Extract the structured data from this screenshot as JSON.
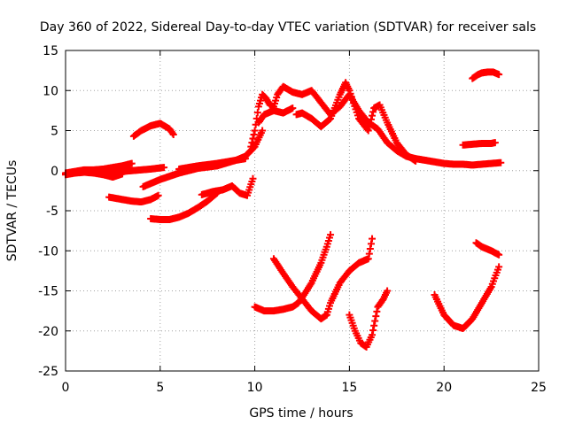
{
  "chart_data": {
    "type": "scatter",
    "title": "Day 360 of 2022, Sidereal Day-to-day VTEC variation (SDTVAR) for receiver sals",
    "xlabel": "GPS time / hours",
    "ylabel": "SDTVAR / TECUs",
    "xlim": [
      0,
      25
    ],
    "ylim": [
      -25,
      15
    ],
    "xticks": [
      0,
      5,
      10,
      15,
      20,
      25
    ],
    "yticks": [
      -25,
      -20,
      -15,
      -10,
      -5,
      0,
      5,
      10,
      15
    ],
    "grid": true,
    "marker": "plus",
    "color": "#ff0000",
    "series": [
      {
        "x": [
          0,
          0.5,
          1,
          1.5,
          2,
          2.5,
          3,
          3.5
        ],
        "y": [
          -0.3,
          -0.1,
          0.1,
          0.1,
          0.2,
          0.4,
          0.6,
          0.9
        ]
      },
      {
        "x": [
          0,
          0.5,
          1,
          1.5,
          2,
          2.5,
          3
        ],
        "y": [
          -0.5,
          -0.3,
          -0.2,
          -0.3,
          -0.5,
          -0.8,
          -0.4
        ]
      },
      {
        "x": [
          2.2,
          2.5,
          3,
          3.5,
          4,
          4.5,
          5.2
        ],
        "y": [
          -0.2,
          -0.2,
          -0.1,
          0.0,
          0.1,
          0.2,
          0.4
        ]
      },
      {
        "x": [
          3.6,
          4.0,
          4.5,
          5.0,
          5.5,
          5.7
        ],
        "y": [
          4.3,
          5.0,
          5.6,
          5.9,
          5.2,
          4.5
        ]
      },
      {
        "x": [
          2.3,
          3.0,
          3.5,
          4.0,
          4.5,
          4.9
        ],
        "y": [
          -3.3,
          -3.6,
          -3.8,
          -3.9,
          -3.6,
          -3.1
        ]
      },
      {
        "x": [
          4.1,
          4.5,
          5.0,
          5.5,
          6.0,
          7.0,
          8.0,
          9.0,
          9.5,
          10.0,
          10.4
        ],
        "y": [
          -2.0,
          -1.6,
          -1.1,
          -0.7,
          -0.3,
          0.3,
          0.6,
          1.3,
          1.8,
          3.0,
          5.0
        ]
      },
      {
        "x": [
          6.0,
          7.0,
          8.0,
          9.0,
          9.5
        ],
        "y": [
          0.2,
          0.6,
          0.9,
          1.3,
          1.5
        ]
      },
      {
        "x": [
          4.5,
          5.0,
          5.5,
          6.0,
          6.5,
          7.0,
          7.5,
          8.0
        ],
        "y": [
          -6.0,
          -6.1,
          -6.1,
          -5.8,
          -5.3,
          -4.6,
          -3.8,
          -2.8
        ]
      },
      {
        "x": [
          7.2,
          7.8,
          8.3,
          8.8,
          9.2,
          9.6,
          9.9
        ],
        "y": [
          -3.0,
          -2.6,
          -2.4,
          -1.9,
          -2.8,
          -3.1,
          -1.0
        ]
      },
      {
        "x": [
          9.8,
          10.0,
          10.2,
          10.4,
          10.6,
          10.8,
          11.0,
          11.2,
          11.5,
          12.0,
          12.5,
          13.0,
          13.5,
          14.0,
          14.5,
          15.0,
          15.5,
          16.0,
          16.5,
          17.0,
          17.5,
          18.0,
          18.5,
          19.0,
          19.5,
          20.0,
          20.5,
          21.0,
          21.5,
          22.0,
          22.5,
          23.0
        ],
        "y": [
          3.0,
          5.0,
          8.0,
          9.5,
          9.0,
          8.2,
          8.0,
          9.5,
          10.5,
          9.8,
          9.5,
          10.0,
          8.5,
          7.0,
          8.0,
          9.5,
          7.5,
          6.0,
          5.2,
          3.5,
          2.5,
          1.8,
          1.5,
          1.3,
          1.1,
          0.9,
          0.8,
          0.8,
          0.7,
          0.8,
          0.9,
          1.0
        ]
      },
      {
        "x": [
          10.2,
          10.5,
          11.0,
          11.5,
          12.0
        ],
        "y": [
          6.0,
          7.0,
          7.5,
          7.2,
          7.8
        ]
      },
      {
        "x": [
          12.2,
          12.5,
          13.0,
          13.5,
          14.0,
          14.5,
          14.8,
          15.0,
          15.5,
          16.0,
          16.3,
          16.6,
          17.0,
          17.5,
          18.0,
          18.5
        ],
        "y": [
          7.0,
          7.2,
          6.5,
          5.5,
          6.5,
          9.5,
          11.0,
          10.0,
          6.5,
          5.0,
          7.8,
          8.2,
          6.0,
          3.5,
          2.0,
          1.2
        ]
      },
      {
        "x": [
          21.0,
          21.5,
          22.0,
          22.5,
          22.7
        ],
        "y": [
          3.2,
          3.3,
          3.4,
          3.4,
          3.5
        ]
      },
      {
        "x": [
          21.5,
          21.8,
          22.0,
          22.3,
          22.6,
          22.9
        ],
        "y": [
          11.5,
          12.0,
          12.2,
          12.3,
          12.3,
          12.0
        ]
      },
      {
        "x": [
          10.0,
          10.5,
          11.0,
          11.5,
          12.0,
          12.3,
          12.6,
          13.0,
          13.5,
          13.8,
          14.0
        ],
        "y": [
          -17.0,
          -17.5,
          -17.5,
          -17.3,
          -17.0,
          -16.5,
          -15.5,
          -14.0,
          -11.5,
          -9.5,
          -8.0
        ]
      },
      {
        "x": [
          11.0,
          11.5,
          12.0,
          12.5,
          13.0,
          13.5,
          13.8
        ],
        "y": [
          -11.0,
          -12.8,
          -14.5,
          -16.0,
          -17.5,
          -18.5,
          -18.0
        ]
      },
      {
        "x": [
          13.8,
          14.0,
          14.5,
          15.0,
          15.5,
          16.0,
          16.2
        ],
        "y": [
          -18.0,
          -16.5,
          -14.0,
          -12.5,
          -11.5,
          -11.0,
          -8.5
        ]
      },
      {
        "x": [
          15.0,
          15.3,
          15.6,
          15.9,
          16.2,
          16.5,
          16.8,
          17.0
        ],
        "y": [
          -18.0,
          -20.0,
          -21.5,
          -22.0,
          -20.5,
          -17.0,
          -16.0,
          -15.0
        ]
      },
      {
        "x": [
          19.5,
          20.0,
          20.5,
          21.0,
          21.5,
          22.0,
          22.5,
          22.9
        ],
        "y": [
          -15.5,
          -18.0,
          -19.3,
          -19.7,
          -18.5,
          -16.5,
          -14.5,
          -12.0
        ]
      },
      {
        "x": [
          21.7,
          22.0,
          22.5,
          22.9
        ],
        "y": [
          -9.0,
          -9.5,
          -10.0,
          -10.5
        ]
      }
    ]
  }
}
